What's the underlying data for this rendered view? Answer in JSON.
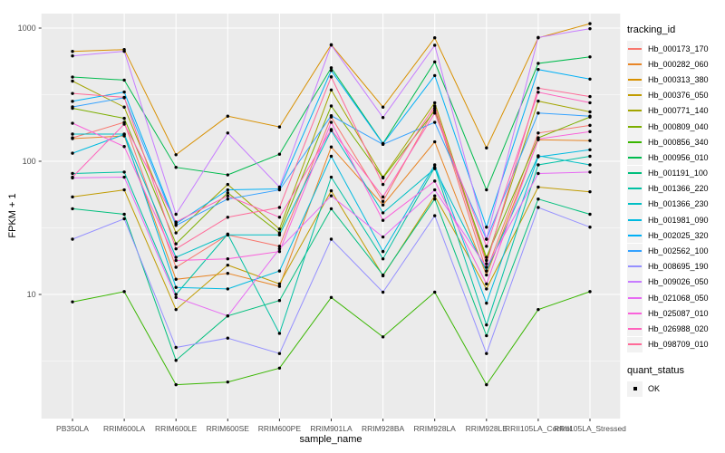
{
  "chart_data": {
    "type": "line",
    "title": "",
    "xlabel": "sample_name",
    "ylabel": "FPKM + 1",
    "y_scale": "log10",
    "grid": true,
    "panel_bg": "#EBEBEB",
    "grid_color": "#FFFFFF",
    "axis_text_color": "#4D4D4D",
    "point_color": "#000000",
    "legend_position": "right",
    "legend_title": "tracking_id",
    "legend2_title": "quant_status",
    "legend2_items": [
      {
        "label": "OK"
      }
    ],
    "y_ticks": [
      {
        "v": 1000,
        "label": "1000"
      },
      {
        "v": 100,
        "label": "100"
      },
      {
        "v": 10,
        "label": "10"
      }
    ],
    "y_minor": [
      316.23,
      31.623,
      3.1623
    ],
    "ylim": [
      1.5,
      1300
    ],
    "categories": [
      "PB350LA",
      "RRIM600LA",
      "RRIM600LE",
      "RRIM600SE",
      "RRIM600PE",
      "RRIM901LA",
      "RRIM928BA",
      "RRIM928LA",
      "RRIM928LE",
      "RRII105LA_Control",
      "RRII105LA_Stressed"
    ],
    "series": [
      {
        "name": "Hb_000173_170",
        "color": "#F8766D",
        "values": [
          150,
          196,
          16,
          28,
          23,
          215,
          50,
          250,
          15,
          163,
          186
        ]
      },
      {
        "name": "Hb_000282_060",
        "color": "#E88526",
        "values": [
          148,
          155,
          13,
          14.4,
          11.5,
          128,
          47,
          140,
          14,
          145,
          143
        ]
      },
      {
        "name": "Hb_000313_380",
        "color": "#D89000",
        "values": [
          668,
          690,
          112,
          218,
          181,
          750,
          255,
          845,
          126,
          845,
          1080
        ]
      },
      {
        "name": "Hb_000376_050",
        "color": "#C09B00",
        "values": [
          54,
          61,
          7.7,
          16.6,
          12,
          60,
          13.8,
          55,
          11,
          64,
          59
        ]
      },
      {
        "name": "Hb_000771_140",
        "color": "#A3A500",
        "values": [
          400,
          255,
          29,
          67,
          31,
          343,
          76,
          275,
          18,
          283,
          235
        ]
      },
      {
        "name": "Hb_000809_040",
        "color": "#7CAE00",
        "values": [
          250,
          210,
          24,
          58,
          29,
          260,
          75,
          240,
          19,
          150,
          215
        ]
      },
      {
        "name": "Hb_000856_340",
        "color": "#39B600",
        "values": [
          8.8,
          10.5,
          2.1,
          2.2,
          2.8,
          9.5,
          4.8,
          10.4,
          2.1,
          7.7,
          10.5
        ]
      },
      {
        "name": "Hb_000956_010",
        "color": "#00BB4E",
        "values": [
          429,
          407,
          90,
          79,
          113,
          503,
          136,
          557,
          61,
          543,
          608
        ]
      },
      {
        "name": "Hb_001191_100",
        "color": "#00BF7D",
        "values": [
          44,
          40,
          3.2,
          6.9,
          9,
          44,
          14,
          52,
          4.9,
          52,
          40
        ]
      },
      {
        "name": "Hb_001366_220",
        "color": "#00C1A3",
        "values": [
          81,
          83,
          10,
          28.4,
          5.1,
          76,
          18.5,
          90,
          5.9,
          94,
          109
        ]
      },
      {
        "name": "Hb_001366_230",
        "color": "#00BFC4",
        "values": [
          160,
          160,
          19,
          28,
          28,
          170,
          41,
          88,
          15,
          110,
          94
        ]
      },
      {
        "name": "Hb_001981_090",
        "color": "#00BAE0",
        "values": [
          115,
          159,
          11.3,
          11,
          15,
          109,
          21,
          94,
          8.6,
          108,
          122
        ]
      },
      {
        "name": "Hb_002025_320",
        "color": "#00B0F6",
        "values": [
          282,
          331,
          34,
          61,
          62,
          480,
          135,
          440,
          32,
          489,
          414
        ]
      },
      {
        "name": "Hb_002562_100",
        "color": "#35A2FF",
        "values": [
          256,
          300,
          33,
          52,
          61,
          220,
          134,
          196,
          26,
          230,
          218
        ]
      },
      {
        "name": "Hb_008695_190",
        "color": "#9590FF",
        "values": [
          26,
          37,
          4,
          4.7,
          3.6,
          26,
          10.4,
          39,
          3.6,
          45,
          32
        ]
      },
      {
        "name": "Hb_009026_050",
        "color": "#C77CFF",
        "values": [
          618,
          670,
          40,
          163,
          64,
          745,
          213,
          743,
          26,
          850,
          990
        ]
      },
      {
        "name": "Hb_021068_050",
        "color": "#E76BF3",
        "values": [
          75,
          76,
          9.5,
          6.9,
          22,
          55,
          27,
          61,
          16,
          81,
          83
        ]
      },
      {
        "name": "Hb_025087_010",
        "color": "#FA62DB",
        "values": [
          193,
          129,
          18,
          18.5,
          21,
          196,
          36,
          71,
          12,
          147,
          167
        ]
      },
      {
        "name": "Hb_026988_020",
        "color": "#FF62BC",
        "values": [
          76,
          190,
          35,
          55,
          38,
          173,
          54,
          230,
          23,
          330,
          275
        ]
      },
      {
        "name": "Hb_098709_010",
        "color": "#FF6A98",
        "values": [
          323,
          302,
          22,
          38,
          45,
          430,
          67,
          260,
          17,
          354,
          306
        ]
      }
    ]
  }
}
